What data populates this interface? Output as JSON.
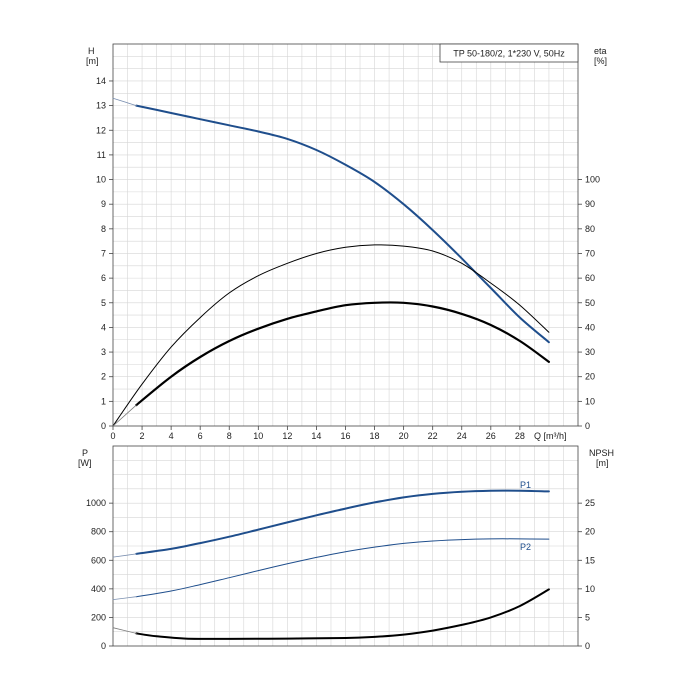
{
  "chart_data": [
    {
      "type": "line",
      "title": "TP 50-180/2, 1*230 V, 50Hz",
      "xlabel": "Q [m³/h]",
      "xlim": [
        0,
        32
      ],
      "x_ticks": [
        0,
        2,
        4,
        6,
        8,
        10,
        12,
        14,
        16,
        18,
        20,
        22,
        24,
        26,
        28
      ],
      "left_axis": {
        "label_line1": "H",
        "label_line2": "[m]",
        "ylim": [
          0,
          15.5
        ],
        "ticks": [
          0,
          1,
          2,
          3,
          4,
          5,
          6,
          7,
          8,
          9,
          10,
          11,
          12,
          13,
          14
        ]
      },
      "right_axis": {
        "label_line1": "eta",
        "label_line2": "[%]",
        "ylim": [
          0,
          155
        ],
        "ticks": [
          0,
          10,
          20,
          30,
          40,
          50,
          60,
          70,
          80,
          90,
          100
        ]
      },
      "grid": true,
      "series": [
        {
          "key": "H",
          "axis": "left",
          "color": "#1f4e8c",
          "x": [
            1.6,
            4,
            6,
            8,
            10,
            12,
            14,
            16,
            18,
            20,
            22,
            24,
            26,
            28,
            30
          ],
          "y": [
            13.0,
            12.7,
            12.45,
            12.2,
            11.95,
            11.65,
            11.2,
            10.6,
            9.9,
            9.0,
            7.95,
            6.8,
            5.6,
            4.4,
            3.4
          ]
        },
        {
          "key": "H_ext",
          "axis": "left",
          "color": "#7a8fb0",
          "x": [
            0,
            1.6
          ],
          "y": [
            13.3,
            13.0
          ]
        },
        {
          "key": "eta_pump",
          "axis": "right",
          "color": "#000000",
          "x": [
            0,
            2,
            4,
            6,
            8,
            10,
            12,
            14,
            16,
            18,
            20,
            22,
            24,
            26,
            28,
            30
          ],
          "y": [
            0,
            17,
            32,
            44,
            54,
            61,
            66,
            70,
            72.5,
            73.5,
            73,
            71,
            66,
            58,
            49,
            38
          ]
        },
        {
          "key": "eta_total",
          "axis": "right",
          "color": "#000000",
          "x": [
            1.6,
            4,
            6,
            8,
            10,
            12,
            14,
            16,
            18,
            20,
            22,
            24,
            26,
            28,
            30
          ],
          "y": [
            8.5,
            20,
            28,
            34.5,
            39.5,
            43.5,
            46.5,
            49,
            50,
            50,
            48.5,
            45.5,
            41,
            34.5,
            26
          ]
        },
        {
          "key": "eta_total_ext",
          "axis": "right",
          "color": "#7a7a7a",
          "x": [
            0,
            1.6
          ],
          "y": [
            0,
            8.5
          ]
        }
      ]
    },
    {
      "type": "line",
      "xlim": [
        0,
        32
      ],
      "left_axis": {
        "label_line1": "P",
        "label_line2": "[W]",
        "ylim": [
          0,
          1400
        ],
        "ticks": [
          0,
          200,
          400,
          600,
          800,
          1000
        ]
      },
      "right_axis": {
        "label_line1": "NPSH",
        "label_line2": "[m]",
        "ylim": [
          0,
          35
        ],
        "ticks": [
          0,
          5,
          10,
          15,
          20,
          25
        ]
      },
      "grid": true,
      "series": [
        {
          "key": "P1",
          "name": "P1",
          "axis": "left",
          "color": "#1f4e8c",
          "x": [
            1.6,
            4,
            6,
            8,
            10,
            12,
            14,
            16,
            18,
            20,
            22,
            24,
            26,
            28,
            30
          ],
          "y": [
            645,
            680,
            720,
            765,
            815,
            865,
            915,
            962,
            1005,
            1040,
            1065,
            1080,
            1087,
            1087,
            1082
          ]
        },
        {
          "key": "P1_ext",
          "axis": "left",
          "color": "#7a8fb0",
          "x": [
            0,
            1.6
          ],
          "y": [
            622,
            645
          ]
        },
        {
          "key": "P2",
          "name": "P2",
          "axis": "left",
          "color": "#1f4e8c",
          "x": [
            1.6,
            4,
            6,
            8,
            10,
            12,
            14,
            16,
            18,
            20,
            22,
            24,
            26,
            28,
            30
          ],
          "y": [
            345,
            385,
            430,
            478,
            528,
            576,
            620,
            660,
            692,
            718,
            735,
            745,
            750,
            750,
            748
          ]
        },
        {
          "key": "P2_ext",
          "axis": "left",
          "color": "#7a8fb0",
          "x": [
            0,
            1.6
          ],
          "y": [
            325,
            345
          ]
        },
        {
          "key": "NPSH",
          "axis": "right",
          "color": "#000000",
          "x": [
            1.6,
            3,
            5,
            8,
            12,
            16,
            18,
            20,
            22,
            24,
            26,
            28,
            30
          ],
          "y": [
            2.2,
            1.7,
            1.3,
            1.25,
            1.3,
            1.4,
            1.6,
            2.0,
            2.7,
            3.7,
            5.0,
            7.0,
            9.9
          ]
        },
        {
          "key": "NPSH_ext",
          "axis": "right",
          "color": "#7a7a7a",
          "x": [
            0,
            1.6
          ],
          "y": [
            3.2,
            2.2
          ]
        }
      ]
    }
  ]
}
